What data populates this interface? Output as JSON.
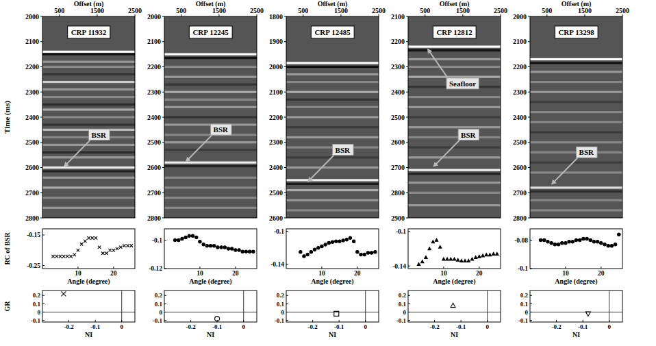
{
  "chart_data": [
    {
      "type": "seismic",
      "title": "CRP 11932",
      "x_label": "Offset (m)",
      "y_label": "Time (ms)",
      "xlim": [
        50,
        2500
      ],
      "xticks": [
        500,
        1500,
        2500
      ],
      "ylim": [
        2000,
        2800
      ],
      "yticks": [
        2000,
        2100,
        2200,
        2300,
        2400,
        2500,
        2600,
        2700,
        2800
      ],
      "reflectors": {
        "time": [
          2140,
          2150,
          2180,
          2200,
          2230,
          2260,
          2290,
          2320,
          2350,
          2370,
          2400,
          2430,
          2450,
          2480,
          2510,
          2540,
          2560,
          2600,
          2615,
          2640,
          2680,
          2720,
          2760
        ],
        "amplitude": [
          1,
          -0.8,
          0.4,
          0.3,
          -0.4,
          0.7,
          0.4,
          0.3,
          -0.5,
          0.5,
          0.3,
          -0.4,
          0.6,
          0.3,
          0.4,
          -0.5,
          0.4,
          0.9,
          -0.6,
          0.4,
          0.5,
          0.3,
          0.4
        ]
      },
      "annotations": [
        {
          "text": "BSR",
          "x": 600,
          "y": 2600
        }
      ]
    },
    {
      "type": "seismic",
      "title": "CRP 12245",
      "x_label": "Offset (m)",
      "xlim": [
        50,
        2500
      ],
      "xticks": [
        500,
        1500,
        2500
      ],
      "ylim": [
        2000,
        2800
      ],
      "yticks": [
        2000,
        2100,
        2200,
        2300,
        2400,
        2500,
        2600,
        2700,
        2800
      ],
      "reflectors": {
        "time": [
          2150,
          2165,
          2200,
          2240,
          2270,
          2300,
          2330,
          2360,
          2400,
          2430,
          2470,
          2500,
          2530,
          2580,
          2595,
          2640,
          2680,
          2720,
          2760
        ],
        "amplitude": [
          1,
          -0.8,
          0.3,
          0.4,
          -0.4,
          0.5,
          0.3,
          0.4,
          -0.4,
          0.4,
          0.3,
          0.4,
          -0.3,
          0.9,
          -0.6,
          0.3,
          0.3,
          0.3,
          0.3
        ]
      },
      "annotations": [
        {
          "text": "BSR",
          "x": 600,
          "y": 2580
        }
      ]
    },
    {
      "type": "seismic",
      "title": "CRP 12485",
      "x_label": "Offset (m)",
      "xlim": [
        50,
        2500
      ],
      "xticks": [
        500,
        1500,
        2500
      ],
      "ylim": [
        1800,
        2600
      ],
      "yticks": [
        1800,
        1900,
        2000,
        2100,
        2200,
        2300,
        2400,
        2500,
        2600
      ],
      "reflectors": {
        "time": [
          1985,
          2000,
          2030,
          2060,
          2100,
          2130,
          2160,
          2200,
          2240,
          2280,
          2320,
          2360,
          2400,
          2450,
          2465,
          2490,
          2530,
          2570
        ],
        "amplitude": [
          1,
          -0.8,
          0.4,
          0.3,
          0.5,
          -0.4,
          0.3,
          0.4,
          -0.3,
          0.4,
          0.3,
          -0.3,
          0.4,
          0.9,
          -0.7,
          0.5,
          0.4,
          0.3
        ]
      },
      "annotations": [
        {
          "text": "BSR",
          "x": 600,
          "y": 2460
        }
      ]
    },
    {
      "type": "seismic",
      "title": "CRP 12812",
      "x_label": "Offset (m)",
      "xlim": [
        50,
        2500
      ],
      "xticks": [
        500,
        1500,
        2500
      ],
      "ylim": [
        2100,
        2900
      ],
      "yticks": [
        2100,
        2200,
        2300,
        2400,
        2500,
        2600,
        2700,
        2800,
        2900
      ],
      "reflectors": {
        "time": [
          2220,
          2235,
          2270,
          2300,
          2340,
          2380,
          2420,
          2460,
          2500,
          2540,
          2580,
          2620,
          2660,
          2710,
          2725,
          2760,
          2800,
          2850
        ],
        "amplitude": [
          1,
          -0.8,
          0.4,
          0.3,
          0.5,
          -0.4,
          0.3,
          0.4,
          -0.3,
          0.4,
          0.3,
          -0.3,
          0.4,
          0.9,
          -0.6,
          0.4,
          0.3,
          0.4
        ]
      },
      "annotations": [
        {
          "text": "Seafloor",
          "x": 550,
          "y": 2225
        },
        {
          "text": "BSR",
          "x": 700,
          "y": 2700
        }
      ]
    },
    {
      "type": "seismic",
      "title": "CRP 13298",
      "x_label": "Offset (m)",
      "xlim": [
        50,
        2500
      ],
      "xticks": [
        500,
        1500,
        2500
      ],
      "ylim": [
        2000,
        2800
      ],
      "yticks": [
        2000,
        2100,
        2200,
        2300,
        2400,
        2500,
        2600,
        2700,
        2800
      ],
      "reflectors": {
        "time": [
          2170,
          2185,
          2220,
          2260,
          2300,
          2340,
          2380,
          2420,
          2460,
          2500,
          2540,
          2580,
          2620,
          2680,
          2695,
          2730,
          2770
        ],
        "amplitude": [
          1,
          -0.8,
          0.4,
          0.3,
          0.4,
          -0.3,
          0.3,
          0.3,
          -0.3,
          0.3,
          0.3,
          -0.3,
          0.3,
          0.8,
          -0.5,
          0.3,
          0.3
        ]
      },
      "annotations": [
        {
          "text": "BSR",
          "x": 600,
          "y": 2670
        }
      ]
    },
    {
      "type": "scatter",
      "x_label": "Angle (degree)",
      "y_label": "RC of BSR",
      "marker": "x",
      "color": "#000000",
      "xlim": [
        0,
        26
      ],
      "xticks": [
        10,
        20
      ],
      "ylim": [
        -0.26,
        -0.13
      ],
      "yticks": [
        -0.25,
        -0.15
      ],
      "x": [
        3,
        4,
        5,
        6,
        7,
        8,
        9,
        10,
        11,
        12,
        13,
        14,
        15,
        16,
        17,
        18,
        19,
        20,
        21,
        22,
        23,
        24,
        25
      ],
      "values": [
        -0.22,
        -0.22,
        -0.22,
        -0.22,
        -0.22,
        -0.22,
        -0.215,
        -0.2,
        -0.18,
        -0.17,
        -0.16,
        -0.16,
        -0.16,
        -0.19,
        -0.21,
        -0.21,
        -0.2,
        -0.2,
        -0.195,
        -0.19,
        -0.185,
        -0.185,
        -0.185
      ]
    },
    {
      "type": "scatter",
      "x_label": "Angle (degree)",
      "marker": "dot",
      "color": "#000000",
      "xlim": [
        0,
        26
      ],
      "xticks": [
        10,
        20
      ],
      "ylim": [
        -0.12,
        -0.092
      ],
      "yticks": [
        -0.12,
        -0.1
      ],
      "x": [
        3,
        4,
        5,
        6,
        7,
        8,
        9,
        10,
        11,
        12,
        13,
        14,
        15,
        16,
        17,
        18,
        19,
        20,
        21,
        22,
        23,
        24,
        25
      ],
      "values": [
        -0.1,
        -0.1,
        -0.099,
        -0.098,
        -0.097,
        -0.097,
        -0.098,
        -0.101,
        -0.103,
        -0.104,
        -0.104,
        -0.104,
        -0.105,
        -0.105,
        -0.105,
        -0.106,
        -0.106,
        -0.107,
        -0.107,
        -0.108,
        -0.108,
        -0.108,
        -0.108
      ]
    },
    {
      "type": "scatter",
      "x_label": "Angle (degree)",
      "marker": "dot",
      "color": "#000000",
      "xlim": [
        0,
        26
      ],
      "xticks": [
        10,
        20
      ],
      "ylim": [
        -0.145,
        -0.097
      ],
      "yticks": [
        -0.14,
        -0.1
      ],
      "x": [
        4,
        5,
        6,
        7,
        8,
        9,
        10,
        11,
        12,
        13,
        14,
        15,
        16,
        17,
        18,
        19,
        20,
        21,
        22,
        23,
        24,
        25
      ],
      "values": [
        -0.125,
        -0.13,
        -0.128,
        -0.125,
        -0.122,
        -0.12,
        -0.118,
        -0.116,
        -0.114,
        -0.113,
        -0.112,
        -0.112,
        -0.111,
        -0.11,
        -0.108,
        -0.112,
        -0.125,
        -0.128,
        -0.128,
        -0.126,
        -0.126,
        -0.125
      ]
    },
    {
      "type": "scatter",
      "x_label": "Angle (degree)",
      "marker": "triangle",
      "color": "#000000",
      "xlim": [
        0,
        26
      ],
      "xticks": [
        10,
        20
      ],
      "ylim": [
        -0.143,
        -0.097
      ],
      "yticks": [
        -0.14,
        -0.1
      ],
      "x": [
        3,
        4,
        5,
        6,
        7,
        8,
        9,
        10,
        11,
        12,
        13,
        14,
        15,
        16,
        17,
        18,
        19,
        20,
        21,
        22,
        23,
        24,
        25
      ],
      "values": [
        -0.138,
        -0.135,
        -0.13,
        -0.12,
        -0.112,
        -0.11,
        -0.118,
        -0.132,
        -0.132,
        -0.132,
        -0.132,
        -0.133,
        -0.134,
        -0.134,
        -0.134,
        -0.132,
        -0.13,
        -0.129,
        -0.128,
        -0.127,
        -0.127,
        -0.126,
        -0.126
      ]
    },
    {
      "type": "scatter",
      "x_label": "Angle (degree)",
      "marker": "dot",
      "color": "#000000",
      "xlim": [
        0,
        26
      ],
      "xticks": [
        10,
        20
      ],
      "ylim": [
        -0.1,
        -0.072
      ],
      "yticks": [
        -0.1,
        -0.08
      ],
      "x": [
        3,
        4,
        5,
        6,
        7,
        8,
        9,
        10,
        11,
        12,
        13,
        14,
        15,
        16,
        17,
        18,
        19,
        20,
        21,
        22,
        23,
        24,
        25
      ],
      "values": [
        -0.08,
        -0.08,
        -0.081,
        -0.082,
        -0.083,
        -0.083,
        -0.082,
        -0.082,
        -0.081,
        -0.081,
        -0.08,
        -0.08,
        -0.079,
        -0.079,
        -0.08,
        -0.081,
        -0.081,
        -0.082,
        -0.083,
        -0.084,
        -0.084,
        -0.083,
        -0.076
      ]
    },
    {
      "type": "scatter",
      "x_label": "NI",
      "y_label": "GR",
      "marker": "x",
      "color": "#000000",
      "xlim": [
        -0.3,
        0.05
      ],
      "xticks": [
        -0.2,
        -0.1,
        0
      ],
      "ylim": [
        -0.12,
        0.26
      ],
      "yticks": [
        -0.1,
        0,
        0.1,
        0.2
      ],
      "x": [
        -0.22
      ],
      "values": [
        0.22
      ]
    },
    {
      "type": "scatter",
      "x_label": "NI",
      "marker": "circle",
      "color": "#000000",
      "xlim": [
        -0.3,
        0.05
      ],
      "xticks": [
        -0.2,
        -0.1,
        0
      ],
      "ylim": [
        -0.12,
        0.26
      ],
      "yticks": [
        -0.1,
        0,
        0.1,
        0.2
      ],
      "x": [
        -0.1
      ],
      "values": [
        -0.08
      ]
    },
    {
      "type": "scatter",
      "x_label": "NI",
      "marker": "square",
      "color": "#000000",
      "xlim": [
        -0.3,
        0.05
      ],
      "xticks": [
        -0.2,
        -0.1,
        0
      ],
      "ylim": [
        -0.12,
        0.26
      ],
      "yticks": [
        -0.1,
        0,
        0.1,
        0.2
      ],
      "x": [
        -0.11
      ],
      "values": [
        -0.02
      ]
    },
    {
      "type": "scatter",
      "x_label": "NI",
      "marker": "triangle-open",
      "color": "#000000",
      "xlim": [
        -0.3,
        0.05
      ],
      "xticks": [
        -0.2,
        -0.1,
        0
      ],
      "ylim": [
        -0.12,
        0.26
      ],
      "yticks": [
        -0.1,
        0,
        0.1,
        0.2
      ],
      "x": [
        -0.13
      ],
      "values": [
        0.08
      ]
    },
    {
      "type": "scatter",
      "x_label": "NI",
      "marker": "triangle-down-open",
      "color": "#000000",
      "xlim": [
        -0.3,
        0.05
      ],
      "xticks": [
        -0.2,
        -0.1,
        0
      ],
      "ylim": [
        -0.12,
        0.26
      ],
      "yticks": [
        -0.1,
        0,
        0.1,
        0.2
      ],
      "x": [
        -0.08
      ],
      "values": [
        -0.02
      ]
    }
  ]
}
